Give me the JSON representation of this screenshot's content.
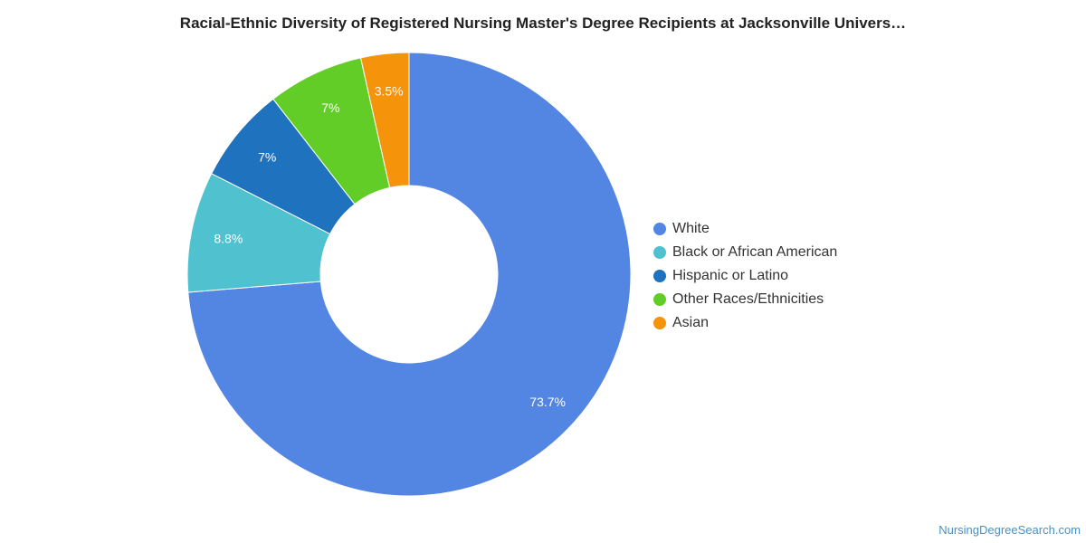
{
  "chart_data": {
    "type": "pie",
    "title": "Racial-Ethnic Diversity of Registered Nursing Master's Degree Recipients at Jacksonville Univers…",
    "donut": true,
    "legend_position": "right",
    "slices": [
      {
        "name": "White",
        "value": 73.7,
        "label": "73.7%",
        "color": "#5385e3"
      },
      {
        "name": "Black or African American",
        "value": 8.8,
        "label": "8.8%",
        "color": "#4fc1cf"
      },
      {
        "name": "Hispanic or Latino",
        "value": 7,
        "label": "7%",
        "color": "#1f72bd"
      },
      {
        "name": "Other Races/Ethnicities",
        "value": 7,
        "label": "7%",
        "color": "#63cd28"
      },
      {
        "name": "Asian",
        "value": 3.5,
        "label": "3.5%",
        "color": "#f5940a"
      }
    ]
  },
  "footer": {
    "source": "NursingDegreeSearch.com"
  }
}
